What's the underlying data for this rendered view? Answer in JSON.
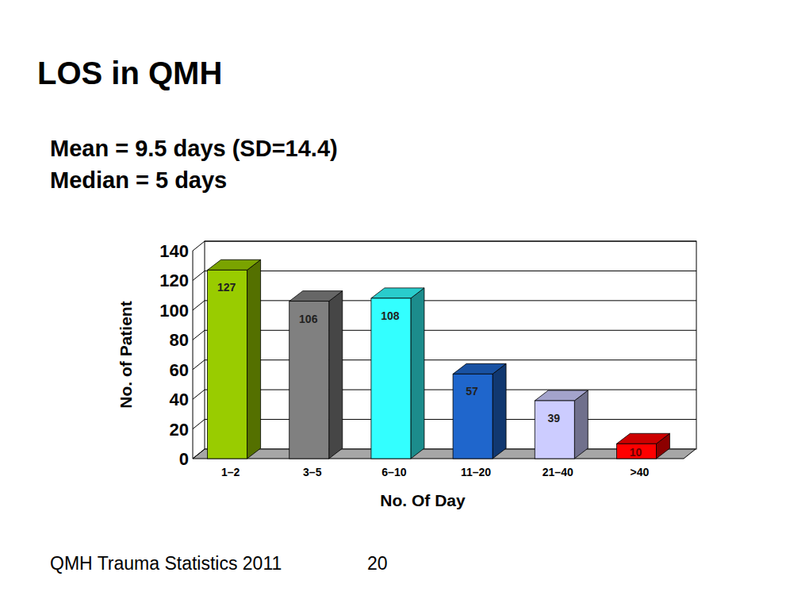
{
  "chart_data": {
    "type": "bar",
    "title": "LOS in QMH",
    "subtitle": [
      "Mean = 9.5 days (SD=14.4)",
      "Median = 5 days"
    ],
    "x_label": "No. Of Day",
    "y_label": "No. of Patient",
    "categories": [
      "1–2",
      "3–5",
      "6–10",
      "11–20",
      "21–40",
      ">40"
    ],
    "values": [
      127,
      106,
      108,
      57,
      39,
      10
    ],
    "colors": [
      "#99cc00",
      "#808080",
      "#33ffff",
      "#1f66cc",
      "#ccccff",
      "#ff0000"
    ],
    "ylim": [
      0,
      140
    ],
    "yticks": [
      0,
      20,
      40,
      60,
      80,
      100,
      120,
      140
    ],
    "grid": true,
    "data_labels": true
  },
  "footer": {
    "text": "QMH Trauma Statistics 2011",
    "page": 20
  }
}
